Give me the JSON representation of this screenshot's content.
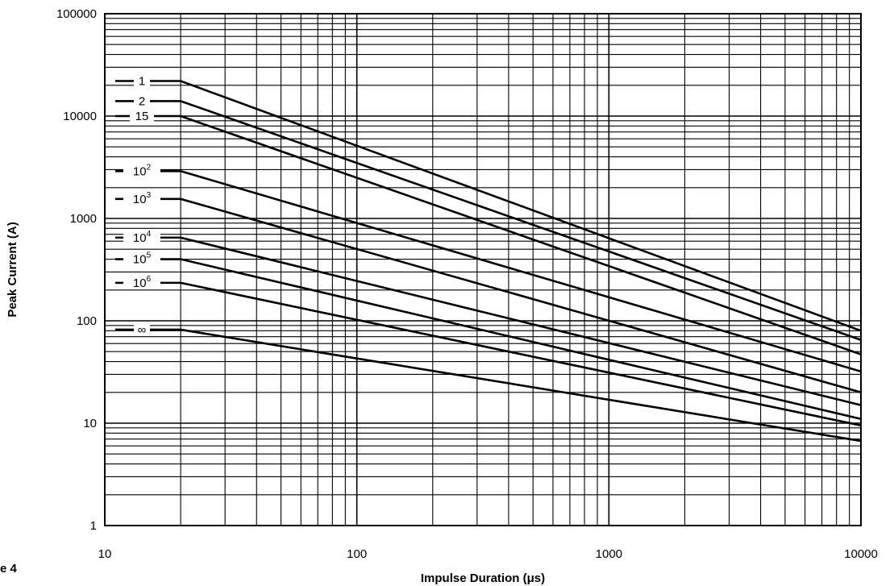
{
  "figure_label": "e 4",
  "chart_data": {
    "type": "line",
    "xlabel": "Impulse Duration (μs)",
    "ylabel": "Peak Current (A)",
    "xscale": "log",
    "yscale": "log",
    "xlim": [
      10,
      10000
    ],
    "ylim": [
      1,
      100000
    ],
    "grid": true,
    "x_ticks": [
      "10",
      "100",
      "1000",
      "10000"
    ],
    "y_ticks": [
      "1",
      "10",
      "100",
      "1000",
      "10000",
      "100000"
    ],
    "series": [
      {
        "label_base": "1",
        "label_exp": "",
        "flat_from": 11,
        "x": [
          20,
          10000
        ],
        "y": [
          22000,
          80
        ]
      },
      {
        "label_base": "2",
        "label_exp": "",
        "flat_from": 11,
        "x": [
          20,
          10000
        ],
        "y": [
          14000,
          65
        ]
      },
      {
        "label_base": "15",
        "label_exp": "",
        "flat_from": 11,
        "x": [
          20,
          10000
        ],
        "y": [
          10000,
          47
        ]
      },
      {
        "label_base": "10",
        "label_exp": "2",
        "flat_from": 11,
        "x": [
          20,
          10000
        ],
        "y": [
          2900,
          32
        ]
      },
      {
        "label_base": "10",
        "label_exp": "3",
        "flat_from": 11,
        "x": [
          20,
          10000
        ],
        "y": [
          1550,
          20
        ]
      },
      {
        "label_base": "10",
        "label_exp": "4",
        "flat_from": 11,
        "x": [
          20,
          10000
        ],
        "y": [
          650,
          15
        ]
      },
      {
        "label_base": "10",
        "label_exp": "5",
        "flat_from": 11,
        "x": [
          20,
          10000
        ],
        "y": [
          400,
          11
        ]
      },
      {
        "label_base": "10",
        "label_exp": "6",
        "flat_from": 11,
        "x": [
          20,
          10000
        ],
        "y": [
          235,
          9.5
        ]
      },
      {
        "label_base": "∞",
        "label_exp": "",
        "flat_from": 11,
        "x": [
          20,
          10000
        ],
        "y": [
          82,
          6.7
        ]
      }
    ]
  }
}
